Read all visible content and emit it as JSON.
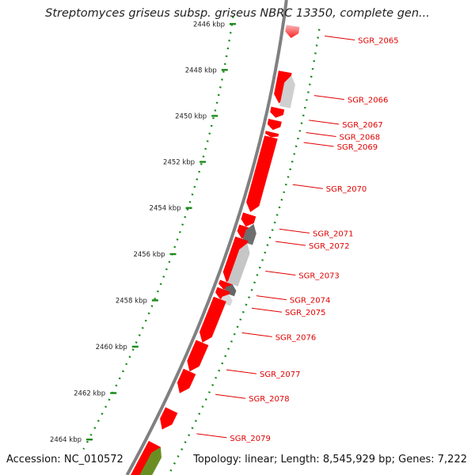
{
  "title": "Streptomyces griseus subsp. griseus NBRC 13350, complete gen...",
  "footer": {
    "accession_label": "Accession:",
    "accession": "NC_010572",
    "topology_label": "Topology:",
    "topology": "linear",
    "length_label": "Length:",
    "length": "8,545,929 bp",
    "genes_label": "Genes:",
    "genes": "7,222"
  },
  "ruler": {
    "ticks": [
      "2446 kbp",
      "2448 kbp",
      "2450 kbp",
      "2452 kbp",
      "2454 kbp",
      "2456 kbp",
      "2458 kbp",
      "2460 kbp",
      "2462 kbp",
      "2464 kbp"
    ]
  },
  "genes": [
    {
      "name": "SGR_2065",
      "start": 2445.7,
      "end": 2446.2,
      "strand": "-",
      "row": "inner",
      "color": "#f6b7b7",
      "colorEnd": "#ff1f1f"
    },
    {
      "name": "SGR_2066",
      "start": 2447.6,
      "end": 2448.9,
      "strand": "-",
      "row": "inner",
      "color": "#ff0000"
    },
    {
      "name": "SGR_2066",
      "start": 2447.7,
      "end": 2449.0,
      "strand": "+",
      "row": "outer",
      "color": "#cfcfcf"
    },
    {
      "name": "SGR_2067",
      "start": 2449.1,
      "end": 2449.5,
      "strand": "-",
      "row": "inner",
      "color": "#ff0000"
    },
    {
      "name": "SGR_2068",
      "start": 2449.6,
      "end": 2450.0,
      "strand": "-",
      "row": "inner",
      "color": "#ff0000"
    },
    {
      "name": "SGR_2069",
      "start": 2450.1,
      "end": 2450.3,
      "strand": "-",
      "row": "inner",
      "color": "#ff0000"
    },
    {
      "name": "SGR_2070",
      "start": 2450.3,
      "end": 2453.4,
      "strand": "-",
      "row": "inner",
      "color": "#ff0000"
    },
    {
      "name": "SGR_2071",
      "start": 2453.5,
      "end": 2454.0,
      "strand": "-",
      "row": "inner",
      "color": "#ff0000"
    },
    {
      "name": "SGR_2072",
      "start": 2454.0,
      "end": 2454.5,
      "strand": "-",
      "row": "inner",
      "color": "#ff0000"
    },
    {
      "name": "SGR_2072",
      "start": 2453.8,
      "end": 2454.6,
      "strand": "+",
      "row": "outer",
      "color": "#6e6e6e"
    },
    {
      "name": "SGR_2073",
      "start": 2454.5,
      "end": 2456.3,
      "strand": "-",
      "row": "inner",
      "color": "#ff0000"
    },
    {
      "name": "SGR_2073",
      "start": 2454.6,
      "end": 2456.3,
      "strand": "+",
      "row": "outer",
      "color": "#c6c6c6"
    },
    {
      "name": "SGR_2074",
      "start": 2456.3,
      "end": 2456.6,
      "strand": "-",
      "row": "inner",
      "color": "#ff0000"
    },
    {
      "name": "SGR_2074",
      "start": 2456.3,
      "end": 2456.7,
      "strand": "+",
      "row": "outer",
      "color": "#666666"
    },
    {
      "name": "SGR_2075",
      "start": 2456.6,
      "end": 2457.0,
      "strand": "-",
      "row": "inner",
      "color": "#ff0000"
    },
    {
      "name": "SGR_2075",
      "start": 2456.7,
      "end": 2457.1,
      "strand": "+",
      "row": "outer",
      "color": "#d8d8d8"
    },
    {
      "name": "SGR_2076",
      "start": 2457.0,
      "end": 2458.8,
      "strand": "-",
      "row": "inner",
      "color": "#ff0000"
    },
    {
      "name": "SGR_2077",
      "start": 2458.8,
      "end": 2460.0,
      "strand": "-",
      "row": "inner",
      "color": "#ff0000"
    },
    {
      "name": "SGR_2078",
      "start": 2460.0,
      "end": 2460.9,
      "strand": "-",
      "row": "inner",
      "color": "#ff0000"
    },
    {
      "name": "SGR_2079",
      "start": 2461.6,
      "end": 2462.4,
      "strand": "-",
      "row": "inner",
      "color": "#ff0000"
    },
    {
      "name": "",
      "start": 2463.0,
      "end": 2464.8,
      "strand": "-",
      "row": "inner",
      "color": "#ff0000"
    },
    {
      "name": "",
      "start": 2463.0,
      "end": 2464.8,
      "strand": "+",
      "row": "outer",
      "color": "#6b8e23"
    }
  ],
  "labels": [
    {
      "text": "SGR_2065",
      "kb": 2445.9
    },
    {
      "text": "SGR_2066",
      "kb": 2448.3
    },
    {
      "text": "SGR_2067",
      "kb": 2449.3
    },
    {
      "text": "SGR_2068",
      "kb": 2449.8
    },
    {
      "text": "SGR_2069",
      "kb": 2450.2
    },
    {
      "text": "SGR_2070",
      "kb": 2451.9
    },
    {
      "text": "SGR_2071",
      "kb": 2453.7
    },
    {
      "text": "SGR_2072",
      "kb": 2454.2
    },
    {
      "text": "SGR_2073",
      "kb": 2455.4
    },
    {
      "text": "SGR_2074",
      "kb": 2456.4
    },
    {
      "text": "SGR_2075",
      "kb": 2456.9
    },
    {
      "text": "SGR_2076",
      "kb": 2457.9
    },
    {
      "text": "SGR_2077",
      "kb": 2459.4
    },
    {
      "text": "SGR_2078",
      "kb": 2460.4
    },
    {
      "text": "SGR_2079",
      "kb": 2462.0
    }
  ],
  "colors": {
    "backbone": "#808080",
    "ruler": "#1a8a1a",
    "label": "#e00000",
    "leader": "#e00000"
  }
}
